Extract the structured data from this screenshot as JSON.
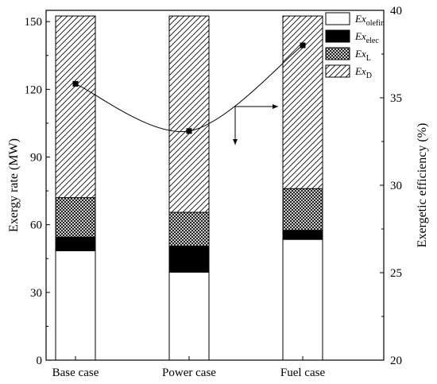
{
  "chart_data": {
    "type": "bar",
    "subtype": "stacked-bar-with-line",
    "categories": [
      "Base case",
      "Power case",
      "Fuel case"
    ],
    "series": [
      {
        "name": "olefin",
        "legend_base": "Ex",
        "legend_sub": "olefin",
        "pattern": "solid-white",
        "values": [
          48.5,
          39.0,
          53.5
        ]
      },
      {
        "name": "elec",
        "legend_base": "Ex",
        "legend_sub": "elec",
        "pattern": "solid-black",
        "values": [
          6.0,
          11.5,
          4.0
        ]
      },
      {
        "name": "L",
        "legend_base": "Ex",
        "legend_sub": "L",
        "pattern": "crosshatch",
        "values": [
          17.5,
          15.0,
          18.5
        ]
      },
      {
        "name": "D",
        "legend_base": "Ex",
        "legend_sub": "D",
        "pattern": "diagonal-hatch",
        "values": [
          80.5,
          87.0,
          76.5
        ]
      }
    ],
    "line_series": {
      "axis": "right",
      "values": [
        35.8,
        33.1,
        38.0
      ],
      "marker": "square",
      "smooth": true
    },
    "xlabel": "",
    "ylabel": "Exergy rate (MW)",
    "ylim": [
      0,
      155
    ],
    "yticks": [
      0,
      30,
      60,
      90,
      120,
      150
    ],
    "y2label": "Exergetic efficiency (%)",
    "y2lim": [
      20,
      40
    ],
    "y2ticks": [
      20,
      25,
      30,
      35,
      40
    ],
    "grid": false,
    "legend_position": "top-right",
    "annotation": "arrows pointing to respective axes",
    "colors": {
      "stroke": "#000000",
      "fill_light": "#ffffff",
      "fill_dark": "#000000"
    }
  }
}
